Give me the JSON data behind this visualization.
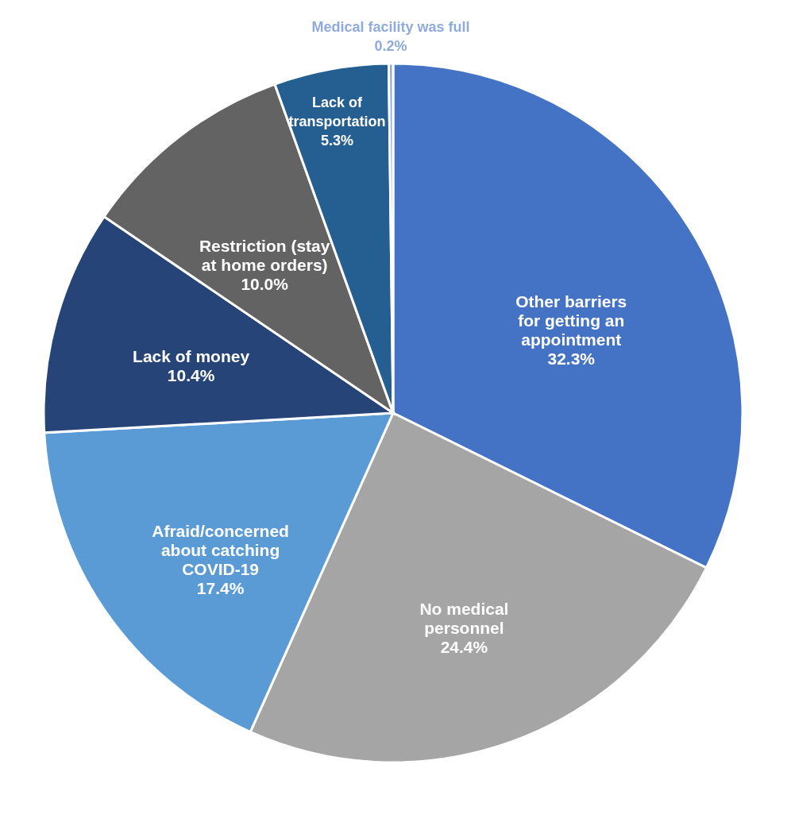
{
  "chart_data": {
    "type": "pie",
    "categories": [
      "Other barriers for getting an appointment",
      "No medical personnel",
      "Afraid/concerned about catching COVID-19",
      "Lack of money",
      "Restriction (stay at home orders)",
      "Lack of transportation",
      "Medical facility was full"
    ],
    "values": [
      32.3,
      24.4,
      17.4,
      10.4,
      10.0,
      5.3,
      0.2
    ],
    "value_labels": [
      "32.3%",
      "24.4%",
      "17.4%",
      "10.4%",
      "10.0%",
      "5.3%",
      "0.2%"
    ],
    "colors": [
      "#4472c4",
      "#a5a5a5",
      "#5b9bd5",
      "#264478",
      "#636363",
      "#255e91",
      "#8faadc"
    ]
  }
}
